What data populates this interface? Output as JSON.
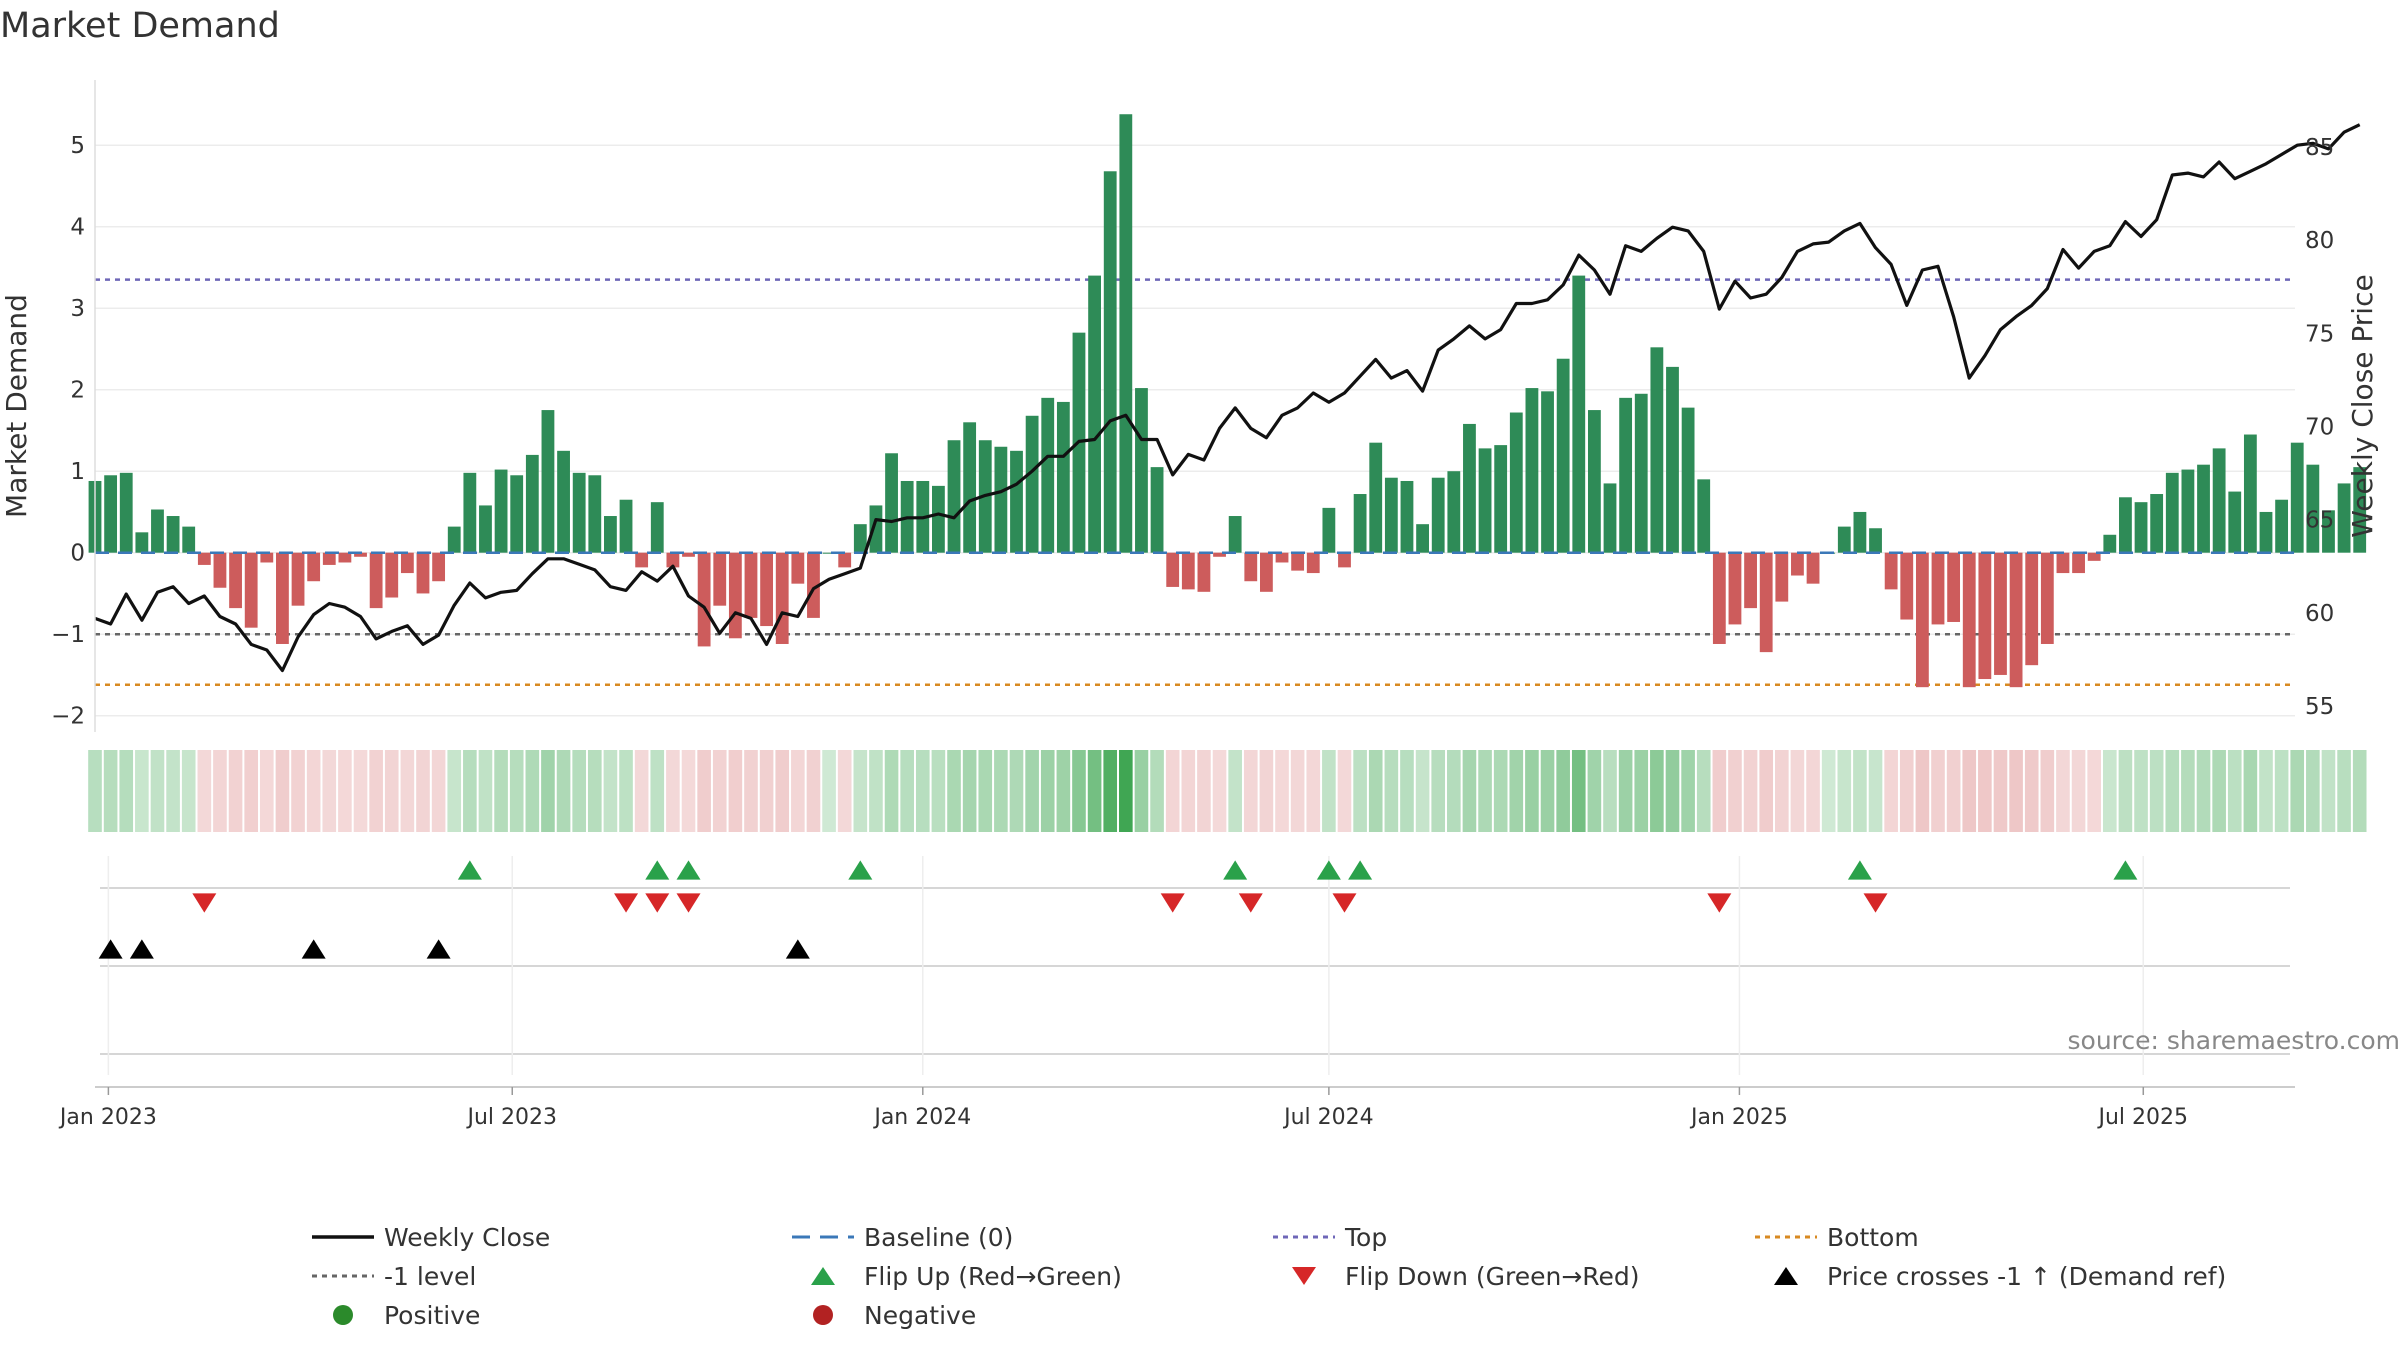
{
  "chart_data": {
    "type": "bar",
    "title": "Market Demand",
    "ylabel_left": "Market Demand",
    "ylabel_right": "Weekly Close Price",
    "ylim_left": [
      -2.2,
      5.8
    ],
    "ylim_right": [
      53.6,
      88.6
    ],
    "yticks_left": [
      -2,
      -1,
      0,
      1,
      2,
      3,
      4,
      5
    ],
    "yticks_right": [
      55,
      60,
      65,
      70,
      75,
      80,
      85
    ],
    "x_start": "2022-12-26",
    "x_end": "2025-09-07",
    "x_ticks": [
      {
        "label": "Jan 2023",
        "date": "2023-01-01"
      },
      {
        "label": "Jul 2023",
        "date": "2023-07-01"
      },
      {
        "label": "Jan 2024",
        "date": "2024-01-01"
      },
      {
        "label": "Jul 2024",
        "date": "2024-07-01"
      },
      {
        "label": "Jan 2025",
        "date": "2025-01-01"
      },
      {
        "label": "Jul 2025",
        "date": "2025-07-01"
      }
    ],
    "first_week": "2022-12-26",
    "reference_lines": {
      "top": 3.35,
      "bottom": -1.62,
      "minus_one": -1,
      "baseline": 0
    },
    "demand": [
      0.88,
      0.95,
      0.98,
      0.25,
      0.53,
      0.45,
      0.32,
      -0.15,
      -0.43,
      -0.68,
      -0.92,
      -0.12,
      -1.12,
      -0.65,
      -0.35,
      -0.15,
      -0.12,
      -0.05,
      -0.68,
      -0.55,
      -0.25,
      -0.5,
      -0.35,
      0.32,
      0.98,
      0.58,
      1.02,
      0.95,
      1.2,
      1.75,
      1.25,
      0.98,
      0.95,
      0.45,
      0.65,
      -0.18,
      0.62,
      -0.18,
      -0.05,
      -1.15,
      -0.65,
      -1.05,
      -0.8,
      -0.9,
      -1.12,
      -0.38,
      -0.8,
      0,
      -0.18,
      0.35,
      0.58,
      1.22,
      0.88,
      0.88,
      0.82,
      1.38,
      1.6,
      1.38,
      1.3,
      1.25,
      1.68,
      1.9,
      1.85,
      2.7,
      3.4,
      4.68,
      5.38,
      2.02,
      1.05,
      -0.42,
      -0.45,
      -0.48,
      -0.05,
      0.45,
      -0.35,
      -0.48,
      -0.12,
      -0.22,
      -0.25,
      0.55,
      -0.18,
      0.72,
      1.35,
      0.92,
      0.88,
      0.35,
      0.92,
      1,
      1.58,
      1.28,
      1.32,
      1.72,
      2.02,
      1.98,
      2.38,
      3.4,
      1.75,
      0.85,
      1.9,
      1.95,
      2.52,
      2.28,
      1.78,
      0.9,
      -1.12,
      -0.88,
      -0.68,
      -1.22,
      -0.6,
      -0.28,
      -0.38,
      0,
      0.32,
      0.5,
      0.3,
      -0.45,
      -0.82,
      -1.65,
      -0.88,
      -0.85,
      -1.65,
      -1.55,
      -1.5,
      -1.65,
      -1.38,
      -1.12,
      -0.25,
      -0.25,
      -0.1,
      0.22,
      0.68,
      0.62,
      0.72,
      0.98,
      1.02,
      1.08,
      1.28,
      0.75,
      1.45,
      0.5,
      0.65,
      1.35,
      1.08,
      0.52,
      0.85,
      1.05
    ],
    "close": [
      59.7,
      59.4,
      61,
      59.6,
      61.1,
      61.4,
      60.5,
      60.9,
      59.8,
      59.4,
      58.3,
      58,
      56.9,
      58.7,
      59.9,
      60.5,
      60.3,
      59.8,
      58.6,
      59,
      59.3,
      58.3,
      58.8,
      60.4,
      61.6,
      60.8,
      61.1,
      61.2,
      62.1,
      62.9,
      62.9,
      62.6,
      62.3,
      61.4,
      61.2,
      62.2,
      61.7,
      62.5,
      60.9,
      60.3,
      58.9,
      60,
      59.7,
      58.3,
      60,
      59.8,
      61.3,
      61.8,
      62.1,
      62.4,
      65,
      64.9,
      65.1,
      65.1,
      65.3,
      65.1,
      66,
      66.3,
      66.5,
      66.9,
      67.6,
      68.4,
      68.4,
      69.2,
      69.3,
      70.3,
      70.6,
      69.3,
      69.3,
      67.4,
      68.5,
      68.2,
      69.9,
      71,
      69.9,
      69.4,
      70.6,
      71,
      71.8,
      71.3,
      71.8,
      72.7,
      73.6,
      72.6,
      73,
      71.9,
      74.1,
      74.7,
      75.4,
      74.7,
      75.2,
      76.6,
      76.6,
      76.8,
      77.6,
      79.2,
      78.4,
      77.1,
      79.7,
      79.4,
      80.1,
      80.7,
      80.5,
      79.4,
      76.3,
      77.8,
      76.9,
      77.1,
      78,
      79.4,
      79.8,
      79.9,
      80.5,
      80.9,
      79.6,
      78.7,
      76.5,
      78.4,
      78.6,
      75.9,
      72.6,
      73.8,
      75.2,
      75.9,
      76.5,
      77.4,
      79.5,
      78.5,
      79.4,
      79.7,
      81,
      80.2,
      81.1,
      83.5,
      83.6,
      83.4,
      84.2,
      83.3,
      83.7,
      84.1,
      84.6,
      85.1,
      85.2,
      84.9,
      85.8,
      86.2
    ],
    "flip_up_weeks": [
      24,
      36,
      38,
      49,
      73,
      79,
      81,
      113,
      130
    ],
    "flip_down_weeks": [
      7,
      34,
      36,
      38,
      69,
      74,
      80,
      104,
      114
    ],
    "price_cross_weeks": [
      1,
      3,
      14,
      22,
      45
    ],
    "source": "source: sharemaestro.com",
    "legend": [
      {
        "label": "Weekly Close",
        "marker": "line",
        "color": "#111111"
      },
      {
        "label": "Baseline (0)",
        "marker": "dash",
        "color": "#3b78b8"
      },
      {
        "label": "Top",
        "marker": "dot",
        "color": "#6f67b8"
      },
      {
        "label": "Bottom",
        "marker": "dot",
        "color": "#d88a22"
      },
      {
        "label": "-1 level",
        "marker": "dot",
        "color": "#666666"
      },
      {
        "label": "Flip Up (Red→Green)",
        "marker": "tri-up",
        "color": "#2aa14a"
      },
      {
        "label": "Flip Down (Green→Red)",
        "marker": "tri-down",
        "color": "#d62728"
      },
      {
        "label": "Price crosses -1 ↑ (Demand ref)",
        "marker": "tri-up",
        "color": "#000000"
      },
      {
        "label": "Positive",
        "marker": "circle",
        "color": "#2b8a2b"
      },
      {
        "label": "Negative",
        "marker": "circle",
        "color": "#b22222"
      }
    ],
    "colors": {
      "positive_bar": "#2e8b57",
      "negative_bar": "#cd5c5c",
      "close_line": "#111111",
      "top_line": "#6f67b8",
      "bottom_line": "#d88a22",
      "minus_one_line": "#666666",
      "baseline": "#3b78b8"
    }
  }
}
